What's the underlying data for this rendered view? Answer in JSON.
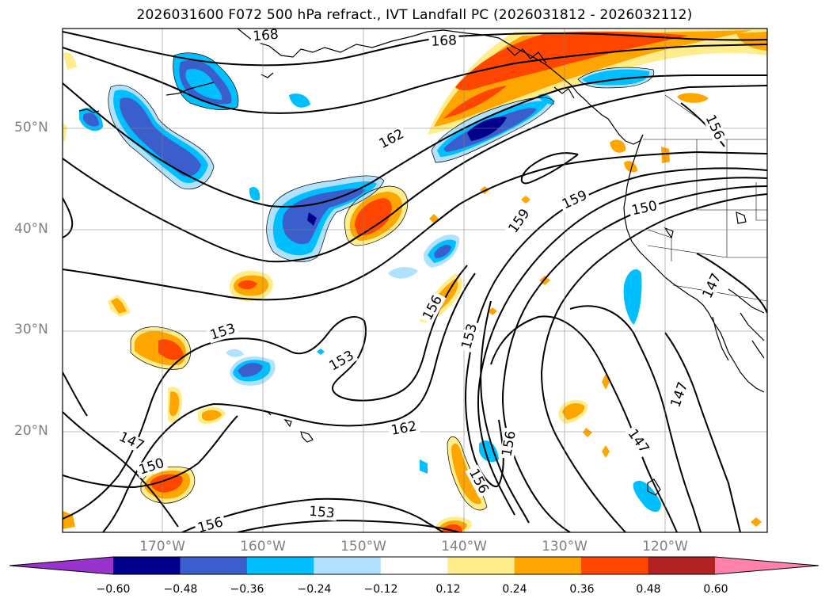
{
  "title": "2026031600 F072 500 hPa refract., IVT Landfall PC (2026031812 - 2026032112)",
  "lat_labels": [
    "50°N",
    "40°N",
    "30°N",
    "20°N"
  ],
  "lon_labels": [
    "170°W",
    "160°W",
    "150°W",
    "140°W",
    "130°W",
    "120°W"
  ],
  "contour_labels": [
    "168",
    "168",
    "162",
    "159",
    "159",
    "156",
    "150",
    "156",
    "153",
    "153",
    "153",
    "162",
    "156",
    "147",
    "150",
    "147",
    "147",
    "147",
    "156",
    "153",
    "156"
  ],
  "colorbar": {
    "ticks": [
      "−0.60",
      "−0.48",
      "−0.36",
      "−0.24",
      "−0.12",
      "0.12",
      "0.24",
      "0.36",
      "0.48",
      "0.60"
    ],
    "colors": [
      "#9a32cd",
      "#00008b",
      "#3a5fcd",
      "#00bfff",
      "#b0e2ff",
      "#ffffff",
      "#ffec8b",
      "#ffa500",
      "#ff4500",
      "#b22222",
      "#ff82ab"
    ]
  },
  "fill_colors": {
    "neg_dark": "#00008b",
    "neg_mid": "#3a5fcd",
    "neg_light": "#00bfff",
    "neg_pale": "#b0e2ff",
    "pos_pale": "#ffec8b",
    "pos_mid": "#ffa500",
    "pos_strong": "#ff4500"
  }
}
